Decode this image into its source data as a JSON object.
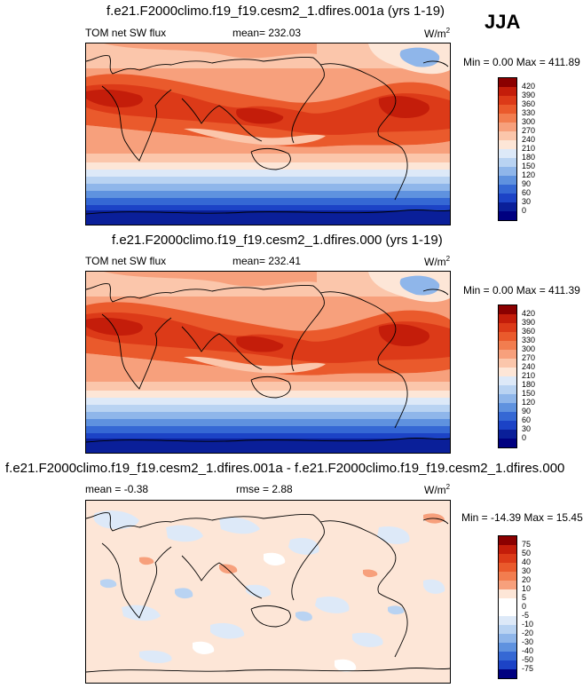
{
  "season": "JJA",
  "panels": [
    {
      "title": "f.e21.F2000climo.f19_f19.cesm2_1.dfires.001a (yrs 1-19)",
      "left_label": "TOM net SW flux",
      "center_label": "mean= 232.03",
      "units": "W/m",
      "units_sup": "2",
      "minmax": "Min =   0.00 Max = 411.89",
      "levels": [
        "420",
        "390",
        "360",
        "330",
        "300",
        "270",
        "240",
        "210",
        "180",
        "150",
        "120",
        "90",
        "60",
        "30",
        "0"
      ]
    },
    {
      "title": "f.e21.F2000climo.f19_f19.cesm2_1.dfires.000 (yrs 1-19)",
      "left_label": "TOM net SW flux",
      "center_label": "mean= 232.41",
      "units": "W/m",
      "units_sup": "2",
      "minmax": "Min =   0.00 Max = 411.39",
      "levels": [
        "420",
        "390",
        "360",
        "330",
        "300",
        "270",
        "240",
        "210",
        "180",
        "150",
        "120",
        "90",
        "60",
        "30",
        "0"
      ]
    },
    {
      "title": "f.e21.F2000climo.f19_f19.cesm2_1.dfires.001a - f.e21.F2000climo.f19_f19.cesm2_1.dfires.000",
      "left_label": "mean =  -0.38",
      "center_label": "rmse =   2.88",
      "units": "W/m",
      "units_sup": "2",
      "minmax": "Min = -14.39 Max =  15.45",
      "levels": [
        "75",
        "50",
        "40",
        "30",
        "20",
        "10",
        "5",
        "0",
        "-5",
        "-10",
        "-20",
        "-30",
        "-40",
        "-50",
        "-75"
      ]
    }
  ],
  "colors": {
    "abs_scale": [
      "#8b0000",
      "#c41d0a",
      "#dc3a18",
      "#ea5a2c",
      "#f27d4f",
      "#f7a07c",
      "#fbc6ab",
      "#fde6d7",
      "#dde9f8",
      "#b9d3f2",
      "#8fb6ea",
      "#5f92df",
      "#3568d4",
      "#1c43c6",
      "#0a1f99",
      "#000080"
    ],
    "diff_scale": [
      "#8b0000",
      "#c41d0a",
      "#dc3a18",
      "#ea5a2c",
      "#f27d4f",
      "#f7a07c",
      "#fde6d7",
      "#ffffff",
      "#ffffff",
      "#dde9f8",
      "#b9d3f2",
      "#8fb6ea",
      "#5f92df",
      "#3568d4",
      "#1c43c6",
      "#000080"
    ]
  }
}
